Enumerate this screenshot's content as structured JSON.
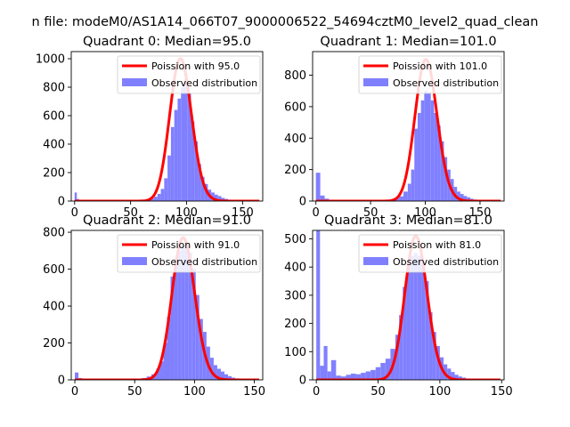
{
  "figure": {
    "suptitle": "n file: modeM0/AS1A14_066T07_9000006522_54694cztM0_level2_quad_clean"
  },
  "colors": {
    "poisson": "#ff0000",
    "observed": "#8080ff",
    "axis": "#000000",
    "legend_border": "#cccccc"
  },
  "chart_data": [
    {
      "type": "bar",
      "title": "Quadrant 0: Median=95.0",
      "xlim": [
        -3,
        168
      ],
      "ylim": [
        0,
        1050
      ],
      "xticks": [
        0,
        50,
        100,
        150
      ],
      "yticks": [
        0,
        200,
        400,
        600,
        800,
        1000
      ],
      "median": 95,
      "scale": 1000,
      "legend": [
        "Poission with 95.0",
        "Observed distribution"
      ],
      "hist": [
        [
          0,
          60
        ],
        [
          2,
          15
        ],
        [
          4,
          8
        ],
        [
          6,
          5
        ],
        [
          60,
          5
        ],
        [
          65,
          10
        ],
        [
          68,
          18
        ],
        [
          71,
          30
        ],
        [
          74,
          50
        ],
        [
          77,
          85
        ],
        [
          80,
          160
        ],
        [
          83,
          320
        ],
        [
          86,
          520
        ],
        [
          89,
          640
        ],
        [
          92,
          720
        ],
        [
          95,
          800
        ],
        [
          98,
          860
        ],
        [
          101,
          760
        ],
        [
          104,
          560
        ],
        [
          107,
          420
        ],
        [
          110,
          260
        ],
        [
          113,
          170
        ],
        [
          116,
          120
        ],
        [
          119,
          80
        ],
        [
          122,
          60
        ],
        [
          125,
          45
        ],
        [
          128,
          35
        ],
        [
          131,
          22
        ],
        [
          134,
          15
        ],
        [
          137,
          10
        ],
        [
          140,
          6
        ],
        [
          143,
          4
        ]
      ]
    },
    {
      "type": "bar",
      "title": "Quadrant 1: Median=101.0",
      "xlim": [
        -3,
        172
      ],
      "ylim": [
        0,
        950
      ],
      "xticks": [
        0,
        50,
        100,
        150
      ],
      "yticks": [
        0,
        200,
        400,
        600,
        800
      ],
      "median": 101,
      "scale": 900,
      "legend": [
        "Poission with 101.0",
        "Observed distribution"
      ],
      "hist": [
        [
          0,
          180
        ],
        [
          4,
          35
        ],
        [
          8,
          15
        ],
        [
          12,
          8
        ],
        [
          64,
          6
        ],
        [
          68,
          10
        ],
        [
          72,
          18
        ],
        [
          76,
          30
        ],
        [
          80,
          60
        ],
        [
          84,
          110
        ],
        [
          87,
          200
        ],
        [
          90,
          460
        ],
        [
          93,
          560
        ],
        [
          96,
          640
        ],
        [
          99,
          700
        ],
        [
          102,
          690
        ],
        [
          105,
          640
        ],
        [
          108,
          560
        ],
        [
          111,
          480
        ],
        [
          114,
          380
        ],
        [
          117,
          280
        ],
        [
          120,
          200
        ],
        [
          123,
          140
        ],
        [
          126,
          90
        ],
        [
          129,
          60
        ],
        [
          132,
          45
        ],
        [
          135,
          32
        ],
        [
          138,
          24
        ],
        [
          141,
          15
        ],
        [
          144,
          10
        ],
        [
          147,
          6
        ]
      ]
    },
    {
      "type": "bar",
      "title": "Quadrant 2: Median=91.0",
      "xlim": [
        -3,
        157
      ],
      "ylim": [
        0,
        810
      ],
      "xticks": [
        0,
        50,
        100,
        150
      ],
      "yticks": [
        0,
        200,
        400,
        600,
        800
      ],
      "median": 91,
      "scale": 770,
      "legend": [
        "Poission with 91.0",
        "Observed distribution"
      ],
      "hist": [
        [
          0,
          40
        ],
        [
          3,
          10
        ],
        [
          6,
          5
        ],
        [
          52,
          6
        ],
        [
          56,
          10
        ],
        [
          60,
          18
        ],
        [
          64,
          30
        ],
        [
          68,
          60
        ],
        [
          71,
          100
        ],
        [
          74,
          200
        ],
        [
          77,
          340
        ],
        [
          80,
          560
        ],
        [
          83,
          660
        ],
        [
          86,
          700
        ],
        [
          89,
          730
        ],
        [
          92,
          720
        ],
        [
          95,
          690
        ],
        [
          98,
          600
        ],
        [
          101,
          460
        ],
        [
          104,
          330
        ],
        [
          107,
          260
        ],
        [
          110,
          180
        ],
        [
          113,
          120
        ],
        [
          116,
          80
        ],
        [
          119,
          60
        ],
        [
          122,
          45
        ],
        [
          125,
          30
        ],
        [
          128,
          20
        ],
        [
          131,
          12
        ],
        [
          134,
          8
        ],
        [
          137,
          5
        ]
      ]
    },
    {
      "type": "bar",
      "title": "Quadrant 3: Median=81.0",
      "xlim": [
        -3,
        152
      ],
      "ylim": [
        0,
        530
      ],
      "xticks": [
        0,
        50,
        100,
        150
      ],
      "yticks": [
        0,
        100,
        200,
        300,
        400,
        500
      ],
      "median": 81,
      "scale": 510,
      "legend": [
        "Poission with 81.0",
        "Observed distribution"
      ],
      "hist": [
        [
          0,
          530
        ],
        [
          3,
          50
        ],
        [
          6,
          120
        ],
        [
          9,
          30
        ],
        [
          12,
          70
        ],
        [
          16,
          15
        ],
        [
          20,
          12
        ],
        [
          24,
          18
        ],
        [
          28,
          22
        ],
        [
          32,
          20
        ],
        [
          36,
          25
        ],
        [
          40,
          30
        ],
        [
          44,
          35
        ],
        [
          48,
          45
        ],
        [
          52,
          60
        ],
        [
          56,
          75
        ],
        [
          60,
          110
        ],
        [
          64,
          160
        ],
        [
          67,
          230
        ],
        [
          70,
          330
        ],
        [
          73,
          410
        ],
        [
          76,
          440
        ],
        [
          79,
          450
        ],
        [
          82,
          440
        ],
        [
          85,
          410
        ],
        [
          88,
          350
        ],
        [
          91,
          240
        ],
        [
          94,
          170
        ],
        [
          97,
          120
        ],
        [
          100,
          80
        ],
        [
          103,
          55
        ],
        [
          106,
          40
        ],
        [
          109,
          28
        ],
        [
          112,
          18
        ],
        [
          115,
          12
        ],
        [
          118,
          8
        ],
        [
          121,
          5
        ]
      ]
    }
  ]
}
